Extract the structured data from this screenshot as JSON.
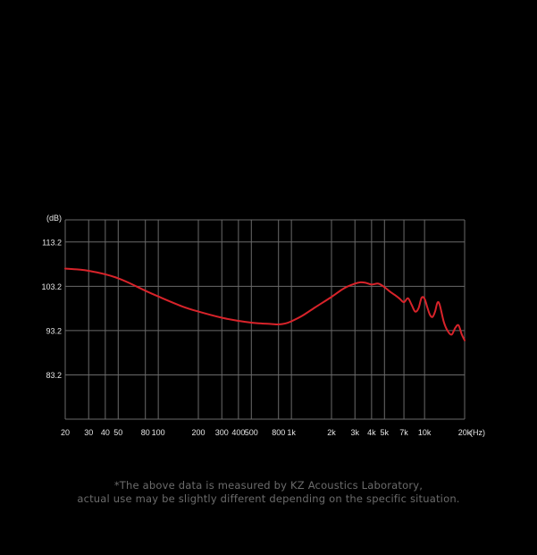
{
  "chart_data": {
    "type": "line",
    "xscale": "log",
    "xlim": [
      20,
      20000
    ],
    "ylim": [
      73.2,
      118.2
    ],
    "y_unit_label": "(dB)",
    "x_unit_label": "(Hz)",
    "yticks": [
      {
        "value": 113.2,
        "label": "113.2"
      },
      {
        "value": 103.2,
        "label": "103.2"
      },
      {
        "value": 93.2,
        "label": "93.2"
      },
      {
        "value": 83.2,
        "label": "83.2"
      }
    ],
    "xticks": [
      {
        "value": 20,
        "label": "20"
      },
      {
        "value": 30,
        "label": "30"
      },
      {
        "value": 40,
        "label": "40"
      },
      {
        "value": 50,
        "label": "50"
      },
      {
        "value": 80,
        "label": "80"
      },
      {
        "value": 100,
        "label": "100"
      },
      {
        "value": 200,
        "label": "200"
      },
      {
        "value": 300,
        "label": "300"
      },
      {
        "value": 400,
        "label": "400"
      },
      {
        "value": 500,
        "label": "500"
      },
      {
        "value": 800,
        "label": "800"
      },
      {
        "value": 1000,
        "label": "1k"
      },
      {
        "value": 2000,
        "label": "2k"
      },
      {
        "value": 3000,
        "label": "3k"
      },
      {
        "value": 4000,
        "label": "4k"
      },
      {
        "value": 5000,
        "label": "5k"
      },
      {
        "value": 7000,
        "label": "7k"
      },
      {
        "value": 10000,
        "label": "10k"
      },
      {
        "value": 20000,
        "label": "20k"
      }
    ],
    "grid_x": [
      20,
      30,
      40,
      50,
      80,
      100,
      200,
      300,
      400,
      500,
      800,
      1000,
      2000,
      3000,
      4000,
      5000,
      7000,
      10000,
      20000
    ],
    "grid_y": [
      73.2,
      83.2,
      93.2,
      103.2,
      113.2,
      118.2
    ],
    "grid": true,
    "series": [
      {
        "color": "#d8232a",
        "x": [
          20,
          25,
          30,
          40,
          50,
          60,
          80,
          100,
          150,
          200,
          300,
          400,
          500,
          600,
          700,
          800,
          900,
          1000,
          1200,
          1500,
          2000,
          2500,
          3000,
          3300,
          3600,
          4000,
          4500,
          5000,
          5500,
          6000,
          6500,
          7000,
          7500,
          8000,
          8500,
          9000,
          9500,
          10000,
          10500,
          11000,
          11500,
          12000,
          12500,
          13000,
          14000,
          15000,
          16000,
          17000,
          18000,
          19000,
          20000
        ],
        "y": [
          107.2,
          107.0,
          106.7,
          105.9,
          105.0,
          104.0,
          102.2,
          100.9,
          98.7,
          97.5,
          96.1,
          95.4,
          95.0,
          94.8,
          94.7,
          94.6,
          94.8,
          95.3,
          96.5,
          98.4,
          100.8,
          102.8,
          103.8,
          104.1,
          104.0,
          103.6,
          103.8,
          103.0,
          102.0,
          101.2,
          100.4,
          99.6,
          100.5,
          99.0,
          97.5,
          98.2,
          100.6,
          100.4,
          98.4,
          96.7,
          96.3,
          97.5,
          99.5,
          99.0,
          95.0,
          93.0,
          92.3,
          93.8,
          94.4,
          92.4,
          91.0
        ]
      }
    ]
  },
  "footnote": {
    "line1": "*The above data is measured by KZ Acoustics Laboratory,",
    "line2": "actual use may be slightly different depending on the specific situation."
  },
  "colors": {
    "background": "#000000",
    "grid": "#6a6a6a",
    "curve": "#d8232a",
    "text": "#e6e6e6"
  }
}
